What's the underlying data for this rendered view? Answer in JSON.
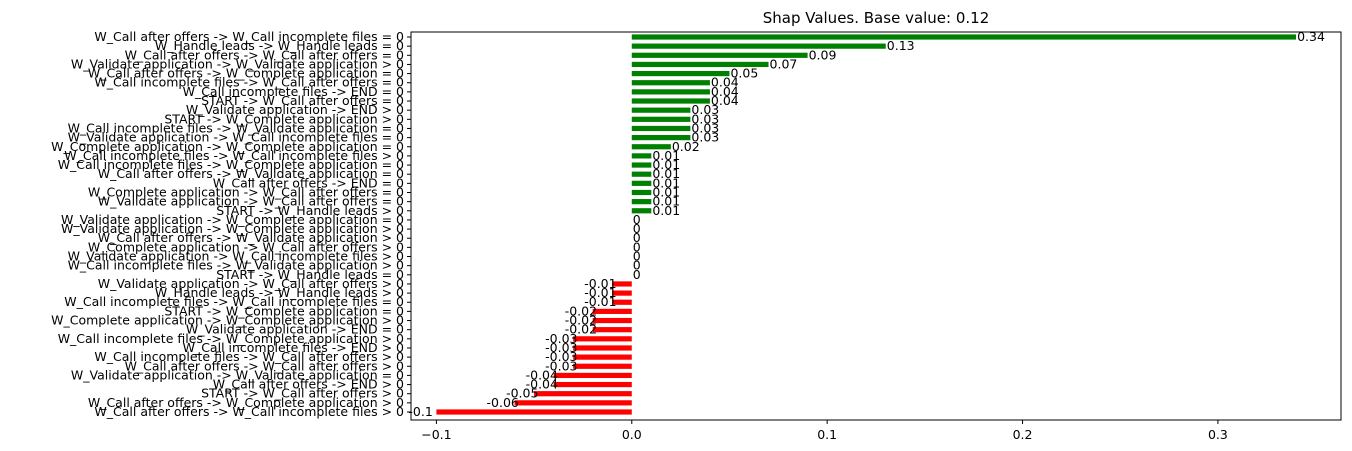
{
  "chart_data": {
    "type": "bar",
    "orientation": "horizontal",
    "title": "Shap Values. Base value: 0.12",
    "xlabel": "",
    "ylabel": "",
    "xlim": [
      -0.113,
      0.363
    ],
    "xticks": [
      -0.1,
      0.0,
      0.1,
      0.2,
      0.3
    ],
    "xtick_labels": [
      "−0.1",
      "0.0",
      "0.1",
      "0.2",
      "0.3"
    ],
    "positive_color": "#008000",
    "negative_color": "#ff0000",
    "categories": [
      "W_Call after offers -> W_Call incomplete files = 0",
      "W_Handle leads -> W_Handle leads = 0",
      "W_Call after offers -> W_Call after offers = 0",
      "W_Validate application -> W_Validate application > 0",
      "W_Call after offers -> W_Complete application = 0",
      "W_Call incomplete files -> W_Call after offers = 0",
      "W_Call incomplete files -> END = 0",
      "START -> W_Call after offers = 0",
      "W_Validate application -> END > 0",
      "START -> W_Complete application > 0",
      "W_Call incomplete files -> W_Validate application = 0",
      "W_Validate application -> W_Call incomplete files = 0",
      "W_Complete application -> W_Complete application = 0",
      "W_Call incomplete files -> W_Call incomplete files > 0",
      "W_Call incomplete files -> W_Complete application = 0",
      "W_Call after offers -> W_Validate application = 0",
      "W_Call after offers -> END = 0",
      "W_Complete application -> W_Call after offers = 0",
      "W_Validate application -> W_Call after offers = 0",
      "START -> W_Handle leads > 0",
      "W_Validate application -> W_Complete application = 0",
      "W_Validate application -> W_Complete application > 0",
      "W_Call after offers -> W_Validate application > 0",
      "W_Complete application -> W_Call after offers > 0",
      "W_Validate application -> W_Call incomplete files > 0",
      "W_Call incomplete files -> W_Validate application > 0",
      "START -> W_Handle leads = 0",
      "W_Validate application -> W_Call after offers > 0",
      "W_Handle leads -> W_Handle leads > 0",
      "W_Call incomplete files -> W_Call incomplete files = 0",
      "START -> W_Complete application = 0",
      "W_Complete application -> W_Complete application > 0",
      "W_Validate application -> END = 0",
      "W_Call incomplete files -> W_Complete application > 0",
      "W_Call incomplete files -> END > 0",
      "W_Call incomplete files -> W_Call after offers > 0",
      "W_Call after offers -> W_Call after offers > 0",
      "W_Validate application -> W_Validate application = 0",
      "W_Call after offers -> END > 0",
      "START -> W_Call after offers > 0",
      "W_Call after offers -> W_Complete application > 0",
      "W_Call after offers -> W_Call incomplete files > 0"
    ],
    "values": [
      0.34,
      0.13,
      0.09,
      0.07,
      0.05,
      0.04,
      0.04,
      0.04,
      0.03,
      0.03,
      0.03,
      0.03,
      0.02,
      0.01,
      0.01,
      0.01,
      0.01,
      0.01,
      0.01,
      0.01,
      0,
      0,
      0,
      0,
      0,
      0,
      0,
      -0.01,
      -0.01,
      -0.01,
      -0.02,
      -0.02,
      -0.02,
      -0.03,
      -0.03,
      -0.03,
      -0.03,
      -0.04,
      -0.04,
      -0.05,
      -0.06,
      -0.1
    ],
    "data_labels": [
      "0.34",
      "0.13",
      "0.09",
      "0.07",
      "0.05",
      "0.04",
      "0.04",
      "0.04",
      "0.03",
      "0.03",
      "0.03",
      "0.03",
      "0.02",
      "0.01",
      "0.01",
      "0.01",
      "0.01",
      "0.01",
      "0.01",
      "0.01",
      "0",
      "0",
      "0",
      "0",
      "0",
      "0",
      "0",
      "-0.01",
      "-0.01",
      "-0.01",
      "-0.02",
      "-0.02",
      "-0.02",
      "-0.03",
      "-0.03",
      "-0.03",
      "-0.03",
      "-0.04",
      "-0.04",
      "-0.05",
      "-0.06",
      "-0.1"
    ]
  }
}
